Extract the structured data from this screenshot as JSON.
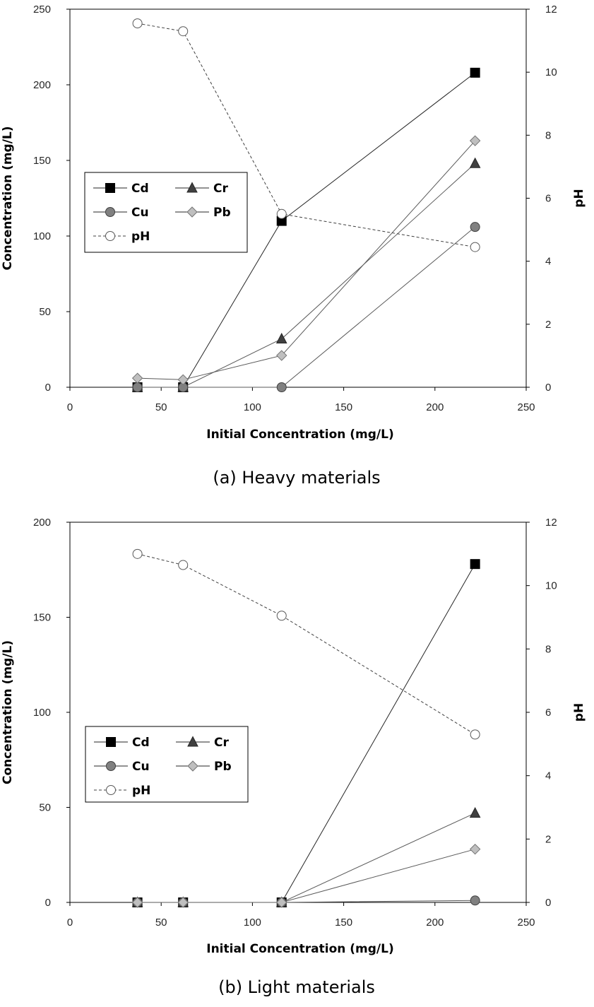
{
  "chart_data": [
    {
      "type": "line",
      "caption": "(a) Heavy materials",
      "xlabel": "Initial Concentration (mg/L)",
      "ylabel": "Concentration (mg/L)",
      "y2label": "pH",
      "xlim": [
        0,
        250
      ],
      "ylim": [
        0,
        250
      ],
      "y2lim": [
        0,
        12
      ],
      "xticks": [
        "0",
        "50",
        "100",
        "150",
        "200",
        "250"
      ],
      "yticks": [
        "0",
        "50",
        "100",
        "150",
        "200",
        "250"
      ],
      "y2ticks": [
        "0",
        "2",
        "4",
        "6",
        "8",
        "10",
        "12"
      ],
      "grid": false,
      "legend_position": "middle-left",
      "x": [
        37,
        62,
        116,
        222
      ],
      "series": [
        {
          "name": "Cd",
          "axis": "left",
          "marker": "square",
          "color": "#000000",
          "line": "solid",
          "values": [
            0,
            0,
            110,
            208
          ]
        },
        {
          "name": "Cr",
          "axis": "left",
          "marker": "triangle",
          "color": "#404040",
          "line": "solid",
          "values": [
            0,
            0,
            32,
            148
          ]
        },
        {
          "name": "Cu",
          "axis": "left",
          "marker": "circle",
          "color": "#808080",
          "line": "solid",
          "values": [
            0,
            0,
            0,
            106
          ]
        },
        {
          "name": "Pb",
          "axis": "left",
          "marker": "diamond",
          "color": "#bfbfbf",
          "line": "solid",
          "values": [
            6,
            5,
            21,
            163
          ]
        },
        {
          "name": "pH",
          "axis": "right",
          "marker": "open-circle",
          "color": "#ffffff",
          "line": "dashed",
          "values": [
            11.55,
            11.3,
            5.5,
            4.45
          ]
        }
      ]
    },
    {
      "type": "line",
      "caption": "(b) Light materials",
      "xlabel": "Initial Concentration (mg/L)",
      "ylabel": "Concentration (mg/L)",
      "y2label": "pH",
      "xlim": [
        0,
        250
      ],
      "ylim": [
        0,
        200
      ],
      "y2lim": [
        0,
        12
      ],
      "xticks": [
        "0",
        "50",
        "100",
        "150",
        "200",
        "250"
      ],
      "yticks": [
        "0",
        "50",
        "100",
        "150",
        "200"
      ],
      "y2ticks": [
        "0",
        "2",
        "4",
        "6",
        "8",
        "10",
        "12"
      ],
      "grid": false,
      "legend_position": "middle-left",
      "x": [
        37,
        62,
        116,
        222
      ],
      "series": [
        {
          "name": "Cd",
          "axis": "left",
          "marker": "square",
          "color": "#000000",
          "line": "solid",
          "values": [
            0,
            0,
            0,
            178
          ]
        },
        {
          "name": "Cr",
          "axis": "left",
          "marker": "triangle",
          "color": "#404040",
          "line": "solid",
          "values": [
            0,
            0,
            0,
            47
          ]
        },
        {
          "name": "Cu",
          "axis": "left",
          "marker": "circle",
          "color": "#808080",
          "line": "solid",
          "values": [
            0,
            0,
            0,
            1
          ]
        },
        {
          "name": "Pb",
          "axis": "left",
          "marker": "diamond",
          "color": "#bfbfbf",
          "line": "solid",
          "values": [
            0,
            0,
            0,
            28
          ]
        },
        {
          "name": "pH",
          "axis": "right",
          "marker": "open-circle",
          "color": "#ffffff",
          "line": "dashed",
          "values": [
            11.0,
            10.65,
            9.05,
            5.3
          ]
        }
      ]
    }
  ]
}
